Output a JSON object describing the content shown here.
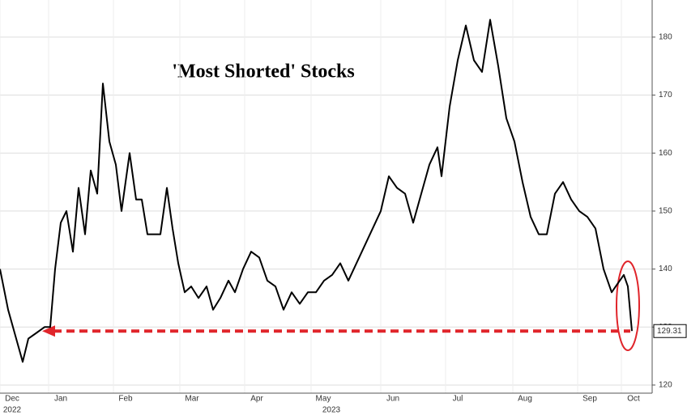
{
  "chart_data": {
    "type": "line",
    "title": "'Most Shorted' Stocks",
    "xlim": [
      0,
      805
    ],
    "ylim": [
      118.6,
      186.4
    ],
    "xticks": [
      {
        "value": 15,
        "label": "Dec"
      },
      {
        "value": 75,
        "label": "Jan"
      },
      {
        "value": 155,
        "label": "Feb"
      },
      {
        "value": 237,
        "label": "Mar"
      },
      {
        "value": 317,
        "label": "Apr"
      },
      {
        "value": 399,
        "label": "May"
      },
      {
        "value": 485,
        "label": "Jun"
      },
      {
        "value": 565,
        "label": "Jul"
      },
      {
        "value": 648,
        "label": "Aug"
      },
      {
        "value": 728,
        "label": "Sep"
      },
      {
        "value": 782,
        "label": "Oct"
      }
    ],
    "year_labels": [
      {
        "value": 15,
        "label": "2022"
      },
      {
        "value": 409,
        "label": "2023"
      }
    ],
    "yticks": [
      120,
      130,
      140,
      150,
      160,
      170,
      180
    ],
    "grid": true,
    "series": [
      {
        "color": "#000000",
        "x": [
          0,
          10,
          20,
          28,
          35,
          45,
          55,
          62,
          68,
          75,
          82,
          90,
          97,
          105,
          112,
          120,
          127,
          135,
          143,
          150,
          160,
          168,
          175,
          182,
          190,
          198,
          206,
          213,
          220,
          228,
          236,
          245,
          255,
          263,
          272,
          282,
          290,
          300,
          310,
          320,
          330,
          340,
          350,
          360,
          370,
          380,
          390,
          400,
          410,
          420,
          430,
          440,
          450,
          460,
          470,
          480,
          490,
          500,
          510,
          520,
          530,
          540,
          545,
          555,
          565,
          575,
          585,
          595,
          605,
          615,
          625,
          635,
          645,
          655,
          665,
          675,
          685,
          695,
          705,
          715,
          725,
          735,
          745,
          755,
          765,
          770,
          775,
          780
        ],
        "values": [
          140,
          133,
          128,
          124,
          128,
          129,
          130,
          130,
          140,
          148,
          150,
          143,
          154,
          146,
          157,
          153,
          172,
          162,
          158,
          150,
          160,
          152,
          152,
          146,
          146,
          146,
          154,
          147,
          141,
          136,
          137,
          135,
          137,
          133,
          135,
          138,
          136,
          140,
          143,
          142,
          138,
          137,
          133,
          136,
          134,
          136,
          136,
          138,
          139,
          141,
          138,
          141,
          144,
          147,
          150,
          156,
          154,
          153,
          148,
          153,
          158,
          161,
          156,
          168,
          176,
          182,
          176,
          174,
          183,
          175,
          166,
          162,
          155,
          149,
          146,
          146,
          153,
          155,
          152,
          150,
          149,
          147,
          140,
          136,
          138,
          139,
          137,
          129.31
        ]
      }
    ],
    "reference_line": {
      "y": 129.31,
      "label": "129.31",
      "color": "#e0252b"
    }
  }
}
